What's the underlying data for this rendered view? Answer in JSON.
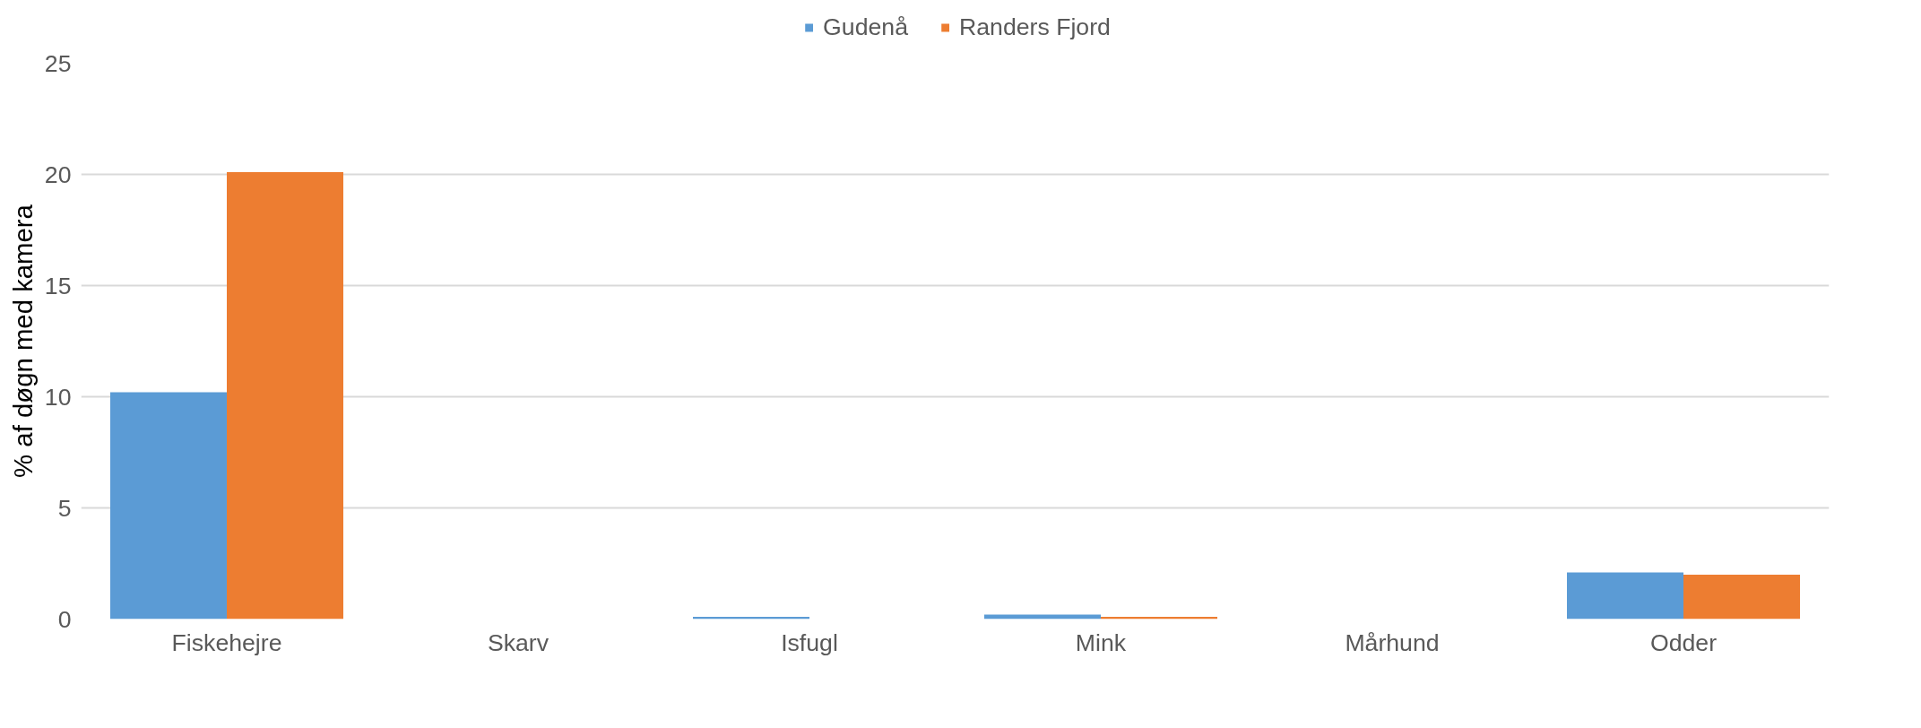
{
  "chart_data": {
    "type": "bar",
    "ylabel": "% af døgn med kamera",
    "categories": [
      "Fiskehejre",
      "Skarv",
      "Isfugl",
      "Mink",
      "Mårhund",
      "Odder"
    ],
    "series": [
      {
        "name": "Gudenå",
        "color": "#5b9bd5",
        "values": [
          10.2,
          0,
          0.1,
          0.2,
          0,
          2.1
        ]
      },
      {
        "name": "Randers Fjord",
        "color": "#ed7d31",
        "values": [
          20.1,
          0,
          0,
          0.1,
          0,
          2.0
        ]
      }
    ],
    "ylim": [
      0,
      25
    ],
    "yticks": [
      0,
      5,
      10,
      15,
      20,
      25
    ],
    "grid": "y",
    "legend": "top"
  }
}
